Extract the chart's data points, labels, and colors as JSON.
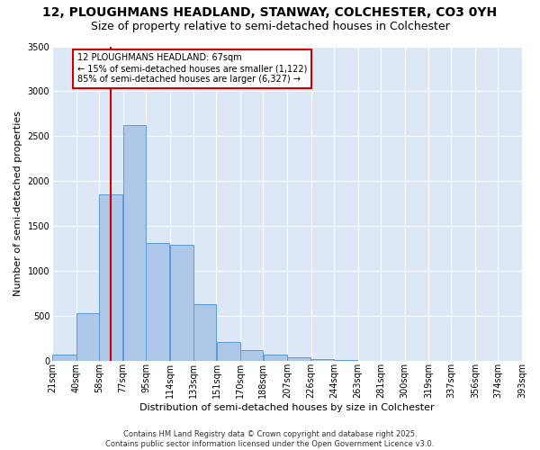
{
  "title": "12, PLOUGHMANS HEADLAND, STANWAY, COLCHESTER, CO3 0YH",
  "subtitle": "Size of property relative to semi-detached houses in Colchester",
  "xlabel": "Distribution of semi-detached houses by size in Colchester",
  "ylabel": "Number of semi-detached properties",
  "annotation_text": "12 PLOUGHMANS HEADLAND: 67sqm\n← 15% of semi-detached houses are smaller (1,122)\n85% of semi-detached houses are larger (6,327) →",
  "bins_left": [
    21,
    40,
    58,
    77,
    95,
    114,
    133,
    151,
    170,
    188,
    207,
    226,
    244,
    263,
    281,
    300,
    319,
    337,
    356,
    374
  ],
  "bins_right": [
    40,
    58,
    77,
    95,
    114,
    133,
    151,
    170,
    188,
    207,
    226,
    244,
    263,
    281,
    300,
    319,
    337,
    356,
    374,
    393
  ],
  "counts": [
    75,
    535,
    1850,
    2620,
    1310,
    1290,
    635,
    210,
    120,
    75,
    40,
    20,
    8,
    0,
    0,
    0,
    0,
    0,
    0,
    0
  ],
  "bar_color": "#aec6e8",
  "bar_edge_color": "#5b9bd5",
  "vline_color": "#cc0000",
  "vline_x": 67,
  "annotation_box_edgecolor": "#cc0000",
  "ylim": [
    0,
    3500
  ],
  "yticks": [
    0,
    500,
    1000,
    1500,
    2000,
    2500,
    3000,
    3500
  ],
  "background_color": "#dce8f5",
  "grid_color": "#ffffff",
  "footer_text": "Contains HM Land Registry data © Crown copyright and database right 2025.\nContains public sector information licensed under the Open Government Licence v3.0.",
  "title_fontsize": 10,
  "subtitle_fontsize": 9,
  "axis_label_fontsize": 8,
  "tick_label_fontsize": 7,
  "annotation_fontsize": 7,
  "footer_fontsize": 6
}
